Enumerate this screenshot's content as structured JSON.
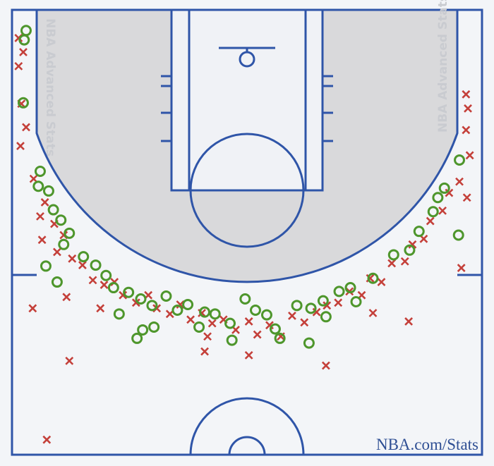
{
  "chart_data": {
    "type": "scatter",
    "watermark_left": "NBA Advanced Stats",
    "watermark_right": "NBA Advanced Stats",
    "credit": "NBA.com/Stats",
    "xlim": [
      -25,
      25
    ],
    "ylim": [
      0,
      47.4
    ],
    "y_inverted": true,
    "series": [
      {
        "marker": "x",
        "color": "#c4403a",
        "x": [
          -24.3,
          -23.8,
          -24.3,
          -24.0,
          -23.5,
          -24.1,
          23.3,
          23.5,
          23.3,
          23.7,
          -22.7,
          -21.5,
          -22.0,
          -20.5,
          -21.8,
          -19.5,
          -20.2,
          -18.6,
          -17.5,
          -16.4,
          -15.2,
          -14.1,
          -13.2,
          -11.8,
          -10.5,
          -9.6,
          -8.2,
          -7.1,
          -6.0,
          -4.8,
          -3.7,
          -2.5,
          -1.2,
          0.2,
          1.1,
          2.4,
          3.6,
          4.8,
          6.1,
          7.4,
          8.5,
          9.7,
          10.9,
          12.2,
          13.1,
          14.3,
          15.4,
          16.8,
          17.6,
          18.8,
          19.5,
          20.8,
          21.5,
          22.6,
          23.4,
          22.8,
          -22.8,
          -18.9,
          -19.2,
          -15.6,
          -4.2,
          0.2,
          8.4,
          17.2,
          -21.3,
          -4.5,
          13.4
        ],
        "values": [
          3,
          4.5,
          6,
          10,
          12.5,
          14.5,
          9,
          10.5,
          12.8,
          15.5,
          18,
          20.5,
          22,
          22.8,
          24.5,
          24,
          25.8,
          26.5,
          27.2,
          28.8,
          29.3,
          29,
          30.4,
          31.2,
          30.4,
          31.8,
          32.4,
          31.4,
          33.0,
          32.3,
          33.4,
          33.0,
          34.1,
          33.2,
          34.6,
          33.6,
          34.8,
          32.6,
          33.3,
          32.2,
          31.5,
          31.2,
          30.0,
          30.4,
          28.6,
          29.0,
          27.0,
          26.8,
          25.0,
          24.4,
          22.5,
          21.4,
          19.5,
          18.3,
          20.0,
          27.5,
          31.8,
          37.4,
          30.6,
          31.8,
          34.8,
          36.8,
          37.9,
          33.2,
          45.8,
          36.4,
          32.3
        ]
      },
      {
        "marker": "o",
        "color": "#4e962c",
        "x": [
          -23.5,
          -23.7,
          -23.8,
          22.6,
          -22.0,
          -22.2,
          -21.1,
          -20.6,
          -19.8,
          -18.9,
          -19.5,
          -17.4,
          -21.4,
          -16.1,
          -20.2,
          -15.0,
          -14.2,
          -12.6,
          -11.3,
          -13.6,
          -10.1,
          -8.6,
          -11.1,
          -9.9,
          -7.4,
          -6.3,
          -4.5,
          -5.1,
          -3.4,
          -1.8,
          -1.6,
          -0.2,
          0.9,
          2.1,
          3.0,
          3.5,
          5.3,
          6.8,
          8.1,
          8.4,
          9.8,
          11.0,
          11.6,
          13.4,
          15.6,
          17.3,
          18.3,
          19.8,
          20.3,
          21.0,
          22.5,
          6.6,
          -11.7
        ],
        "values": [
          2.2,
          3.2,
          9.9,
          16.0,
          17.2,
          18.8,
          19.3,
          21.3,
          22.4,
          23.8,
          25.0,
          26.3,
          27.3,
          27.2,
          29.0,
          28.3,
          29.6,
          30.1,
          30.8,
          32.4,
          31.5,
          30.5,
          34.1,
          33.8,
          32.0,
          31.4,
          32.2,
          33.8,
          32.4,
          33.4,
          35.2,
          30.8,
          32.0,
          32.5,
          34.0,
          35.0,
          31.5,
          31.8,
          31.0,
          32.7,
          30.0,
          29.6,
          31.1,
          28.6,
          26.1,
          25.6,
          23.6,
          21.5,
          20.0,
          19.0,
          24.0,
          35.5,
          35.0
        ]
      }
    ]
  }
}
